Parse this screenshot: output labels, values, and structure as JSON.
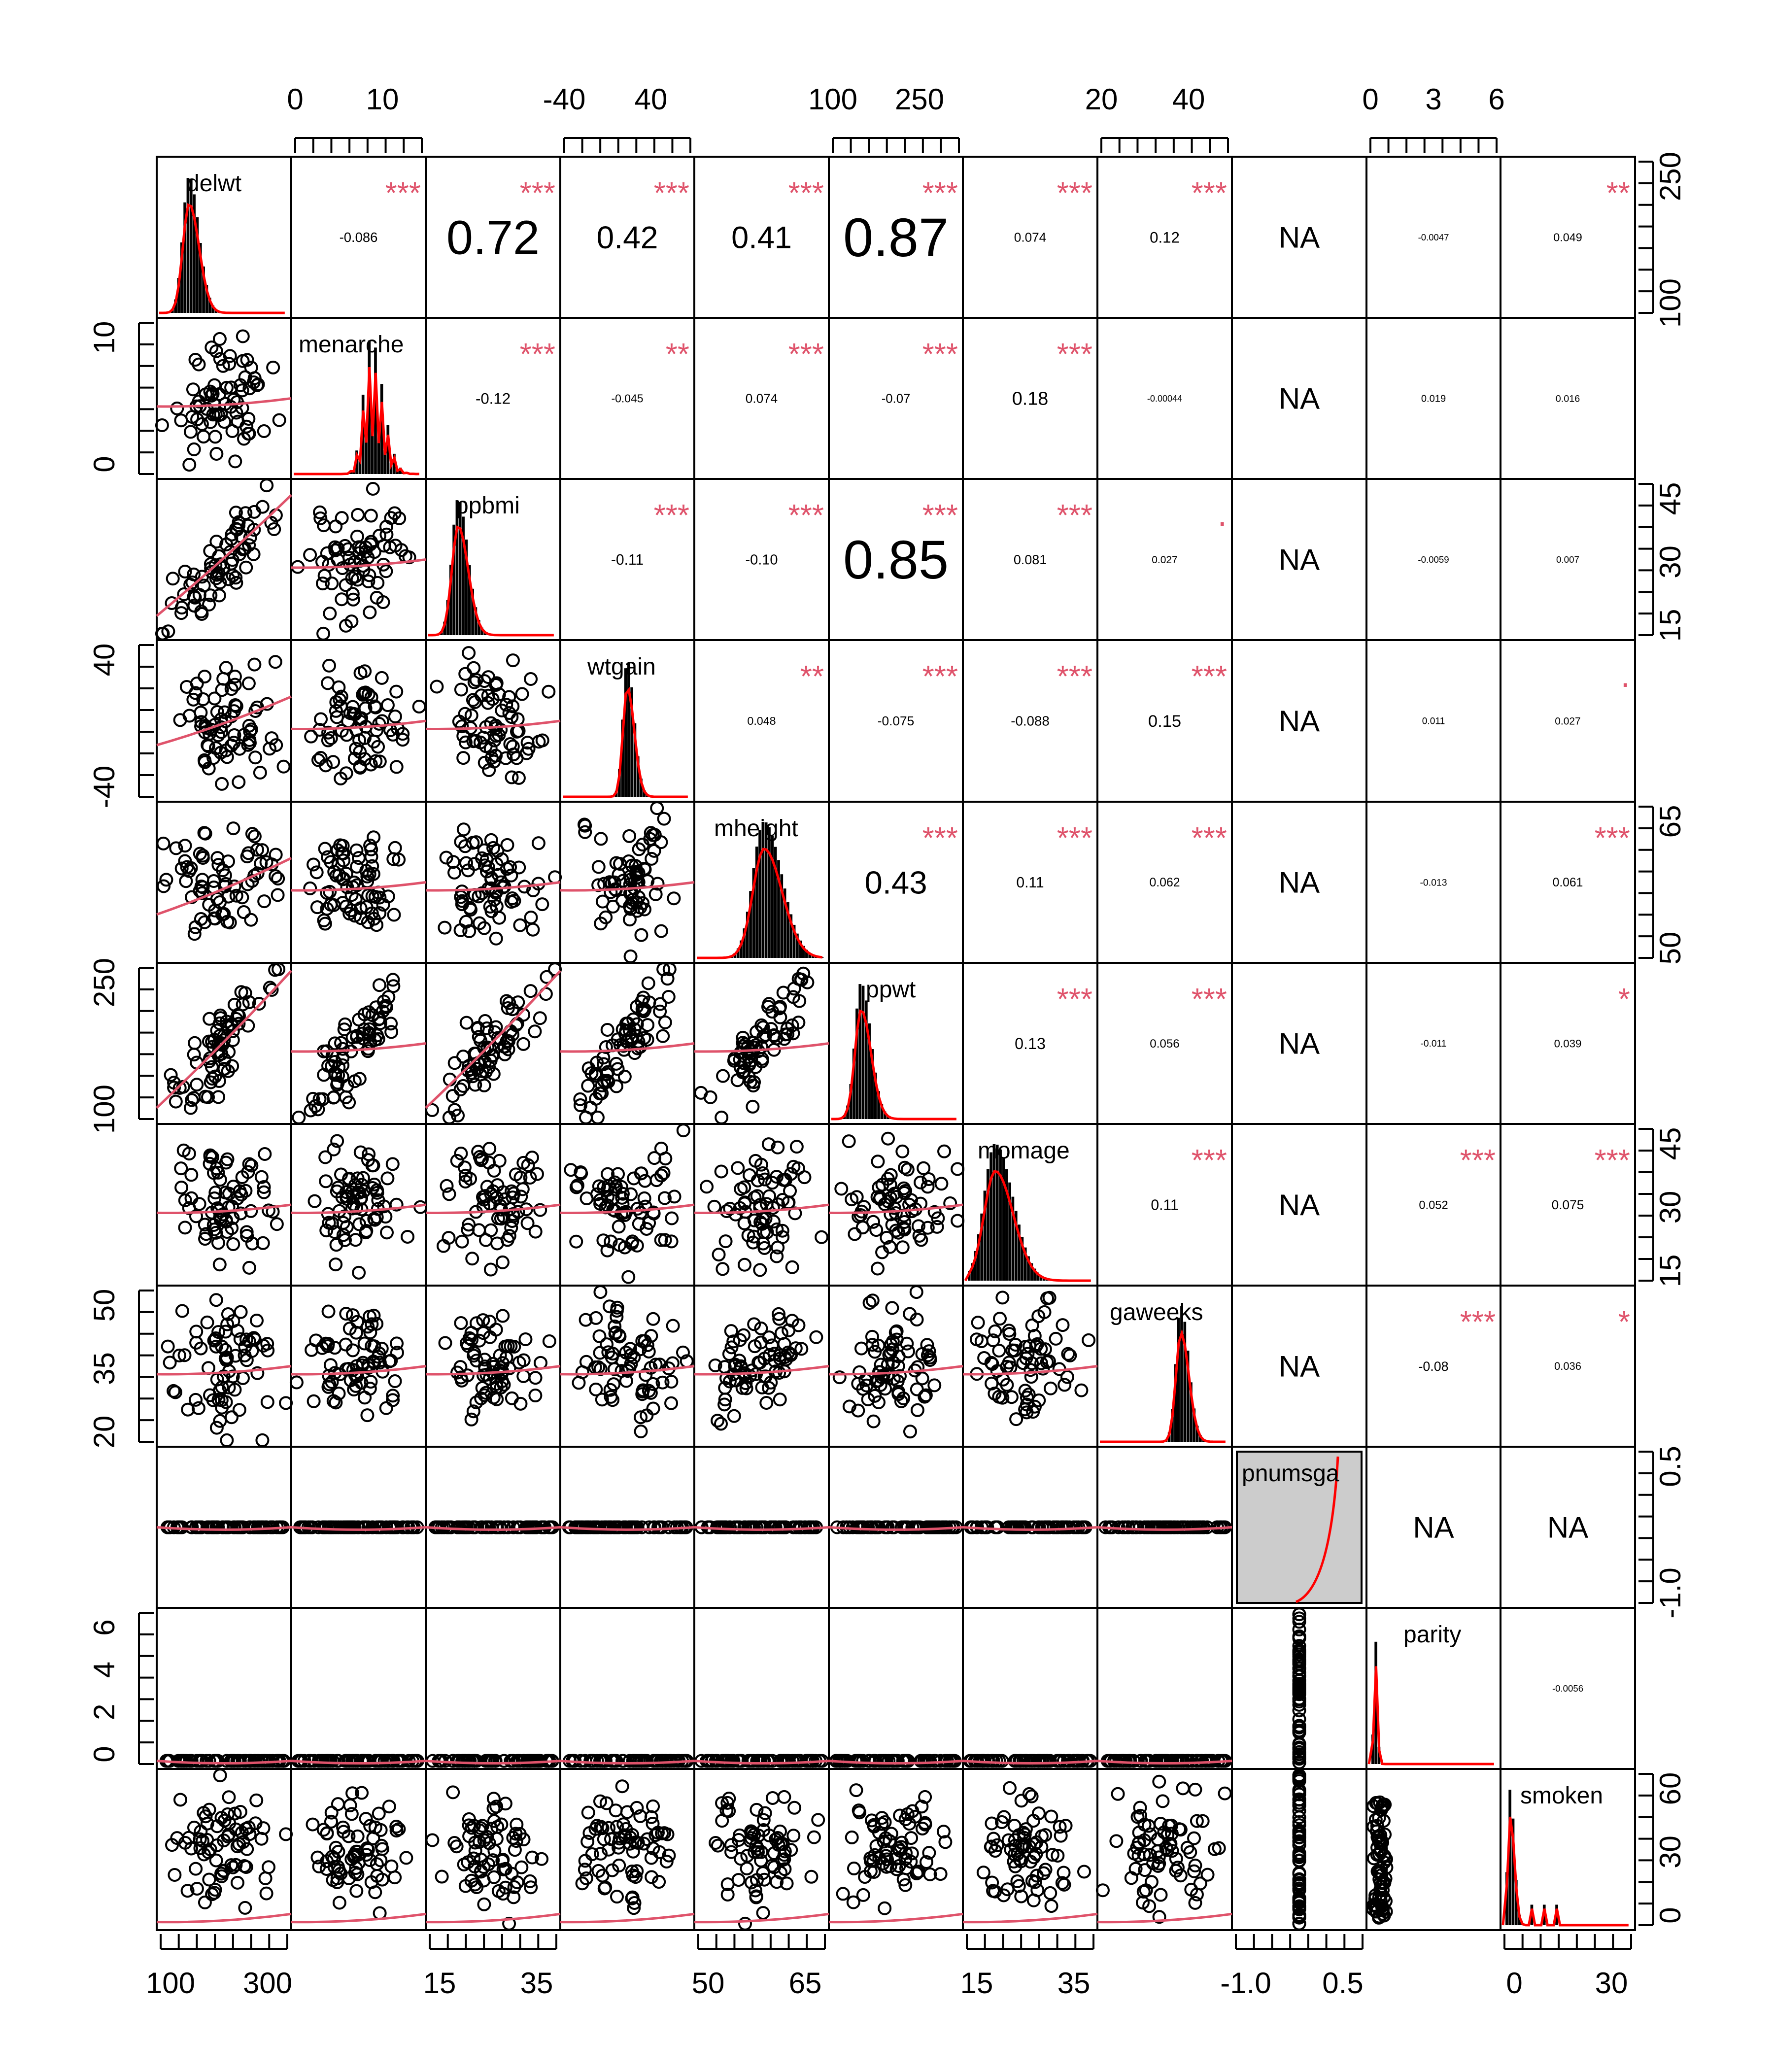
{
  "chart_data": {
    "type": "scatter-matrix",
    "title": "",
    "variables": [
      "delwt",
      "menarche",
      "ppbmi",
      "wtgain",
      "mheight",
      "ppwt",
      "momage",
      "gaweeks",
      "pnumsga",
      "parity",
      "smoken"
    ],
    "axes": {
      "top": [
        {
          "col": 1,
          "ticks": [
            "0",
            "10"
          ]
        },
        {
          "col": 3,
          "ticks": [
            "-40",
            "40"
          ]
        },
        {
          "col": 5,
          "ticks": [
            "100",
            "250"
          ]
        },
        {
          "col": 7,
          "ticks": [
            "20",
            "40"
          ]
        },
        {
          "col": 9,
          "ticks": [
            "0",
            "3",
            "6"
          ]
        }
      ],
      "bottom": [
        {
          "col": 0,
          "ticks": [
            "100",
            "300"
          ]
        },
        {
          "col": 2,
          "ticks": [
            "15",
            "35"
          ]
        },
        {
          "col": 4,
          "ticks": [
            "50",
            "65"
          ]
        },
        {
          "col": 6,
          "ticks": [
            "15",
            "35"
          ]
        },
        {
          "col": 8,
          "ticks": [
            "-1.0",
            "0.5"
          ]
        },
        {
          "col": 10,
          "ticks": [
            "0",
            "30"
          ]
        }
      ],
      "left": [
        {
          "row": 1,
          "ticks": [
            "0",
            "10"
          ]
        },
        {
          "row": 3,
          "ticks": [
            "-40",
            "40"
          ]
        },
        {
          "row": 5,
          "ticks": [
            "100",
            "250"
          ]
        },
        {
          "row": 7,
          "ticks": [
            "20",
            "35",
            "50"
          ]
        },
        {
          "row": 9,
          "ticks": [
            "0",
            "2",
            "4",
            "6"
          ]
        }
      ],
      "right": [
        {
          "row": 0,
          "ticks": [
            "100",
            "250"
          ]
        },
        {
          "row": 2,
          "ticks": [
            "15",
            "30",
            "45"
          ]
        },
        {
          "row": 4,
          "ticks": [
            "50",
            "65"
          ]
        },
        {
          "row": 6,
          "ticks": [
            "15",
            "30",
            "45"
          ]
        },
        {
          "row": 8,
          "ticks": [
            "-1.0",
            "0.5"
          ]
        },
        {
          "row": 10,
          "ticks": [
            "0",
            "30",
            "60"
          ]
        }
      ]
    },
    "correlations": [
      {
        "row": 0,
        "col": 1,
        "value": "-0.086",
        "stars": "***"
      },
      {
        "row": 0,
        "col": 2,
        "value": "0.72",
        "stars": "***"
      },
      {
        "row": 0,
        "col": 3,
        "value": "0.42",
        "stars": "***"
      },
      {
        "row": 0,
        "col": 4,
        "value": "0.41",
        "stars": "***"
      },
      {
        "row": 0,
        "col": 5,
        "value": "0.87",
        "stars": "***"
      },
      {
        "row": 0,
        "col": 6,
        "value": "0.074",
        "stars": "***"
      },
      {
        "row": 0,
        "col": 7,
        "value": "0.12",
        "stars": "***"
      },
      {
        "row": 0,
        "col": 8,
        "value": "NA",
        "stars": ""
      },
      {
        "row": 0,
        "col": 9,
        "value": "-0.0047",
        "stars": ""
      },
      {
        "row": 0,
        "col": 10,
        "value": "0.049",
        "stars": "**"
      },
      {
        "row": 1,
        "col": 2,
        "value": "-0.12",
        "stars": "***"
      },
      {
        "row": 1,
        "col": 3,
        "value": "-0.045",
        "stars": "**"
      },
      {
        "row": 1,
        "col": 4,
        "value": "0.074",
        "stars": "***"
      },
      {
        "row": 1,
        "col": 5,
        "value": "-0.07",
        "stars": "***"
      },
      {
        "row": 1,
        "col": 6,
        "value": "0.18",
        "stars": "***"
      },
      {
        "row": 1,
        "col": 7,
        "value": "-0.00044",
        "stars": ""
      },
      {
        "row": 1,
        "col": 8,
        "value": "NA",
        "stars": ""
      },
      {
        "row": 1,
        "col": 9,
        "value": "0.019",
        "stars": ""
      },
      {
        "row": 1,
        "col": 10,
        "value": "0.016",
        "stars": ""
      },
      {
        "row": 2,
        "col": 3,
        "value": "-0.11",
        "stars": "***"
      },
      {
        "row": 2,
        "col": 4,
        "value": "-0.10",
        "stars": "***"
      },
      {
        "row": 2,
        "col": 5,
        "value": "0.85",
        "stars": "***"
      },
      {
        "row": 2,
        "col": 6,
        "value": "0.081",
        "stars": "***"
      },
      {
        "row": 2,
        "col": 7,
        "value": "0.027",
        "stars": "."
      },
      {
        "row": 2,
        "col": 8,
        "value": "NA",
        "stars": ""
      },
      {
        "row": 2,
        "col": 9,
        "value": "-0.0059",
        "stars": ""
      },
      {
        "row": 2,
        "col": 10,
        "value": "0.007",
        "stars": ""
      },
      {
        "row": 3,
        "col": 4,
        "value": "0.048",
        "stars": "**"
      },
      {
        "row": 3,
        "col": 5,
        "value": "-0.075",
        "stars": "***"
      },
      {
        "row": 3,
        "col": 6,
        "value": "-0.088",
        "stars": "***"
      },
      {
        "row": 3,
        "col": 7,
        "value": "0.15",
        "stars": "***"
      },
      {
        "row": 3,
        "col": 8,
        "value": "NA",
        "stars": ""
      },
      {
        "row": 3,
        "col": 9,
        "value": "0.011",
        "stars": ""
      },
      {
        "row": 3,
        "col": 10,
        "value": "0.027",
        "stars": "."
      },
      {
        "row": 4,
        "col": 5,
        "value": "0.43",
        "stars": "***"
      },
      {
        "row": 4,
        "col": 6,
        "value": "0.11",
        "stars": "***"
      },
      {
        "row": 4,
        "col": 7,
        "value": "0.062",
        "stars": "***"
      },
      {
        "row": 4,
        "col": 8,
        "value": "NA",
        "stars": ""
      },
      {
        "row": 4,
        "col": 9,
        "value": "-0.013",
        "stars": ""
      },
      {
        "row": 4,
        "col": 10,
        "value": "0.061",
        "stars": "***"
      },
      {
        "row": 5,
        "col": 6,
        "value": "0.13",
        "stars": "***"
      },
      {
        "row": 5,
        "col": 7,
        "value": "0.056",
        "stars": "***"
      },
      {
        "row": 5,
        "col": 8,
        "value": "NA",
        "stars": ""
      },
      {
        "row": 5,
        "col": 9,
        "value": "-0.011",
        "stars": ""
      },
      {
        "row": 5,
        "col": 10,
        "value": "0.039",
        "stars": "*"
      },
      {
        "row": 6,
        "col": 7,
        "value": "0.11",
        "stars": "***"
      },
      {
        "row": 6,
        "col": 8,
        "value": "NA",
        "stars": ""
      },
      {
        "row": 6,
        "col": 9,
        "value": "0.052",
        "stars": "***"
      },
      {
        "row": 6,
        "col": 10,
        "value": "0.075",
        "stars": "***"
      },
      {
        "row": 7,
        "col": 8,
        "value": "NA",
        "stars": ""
      },
      {
        "row": 7,
        "col": 9,
        "value": "-0.08",
        "stars": "***"
      },
      {
        "row": 7,
        "col": 10,
        "value": "0.036",
        "stars": "*"
      },
      {
        "row": 8,
        "col": 9,
        "value": "NA",
        "stars": ""
      },
      {
        "row": 8,
        "col": 10,
        "value": "NA",
        "stars": ""
      },
      {
        "row": 9,
        "col": 10,
        "value": "-0.0056",
        "stars": ""
      }
    ],
    "colors": {
      "stars": "#DF536B",
      "smooth": "#DF536B",
      "density": "#FF0000",
      "points": "#000000",
      "pnumsga_fill": "#CCCCCC"
    },
    "grid": false
  }
}
